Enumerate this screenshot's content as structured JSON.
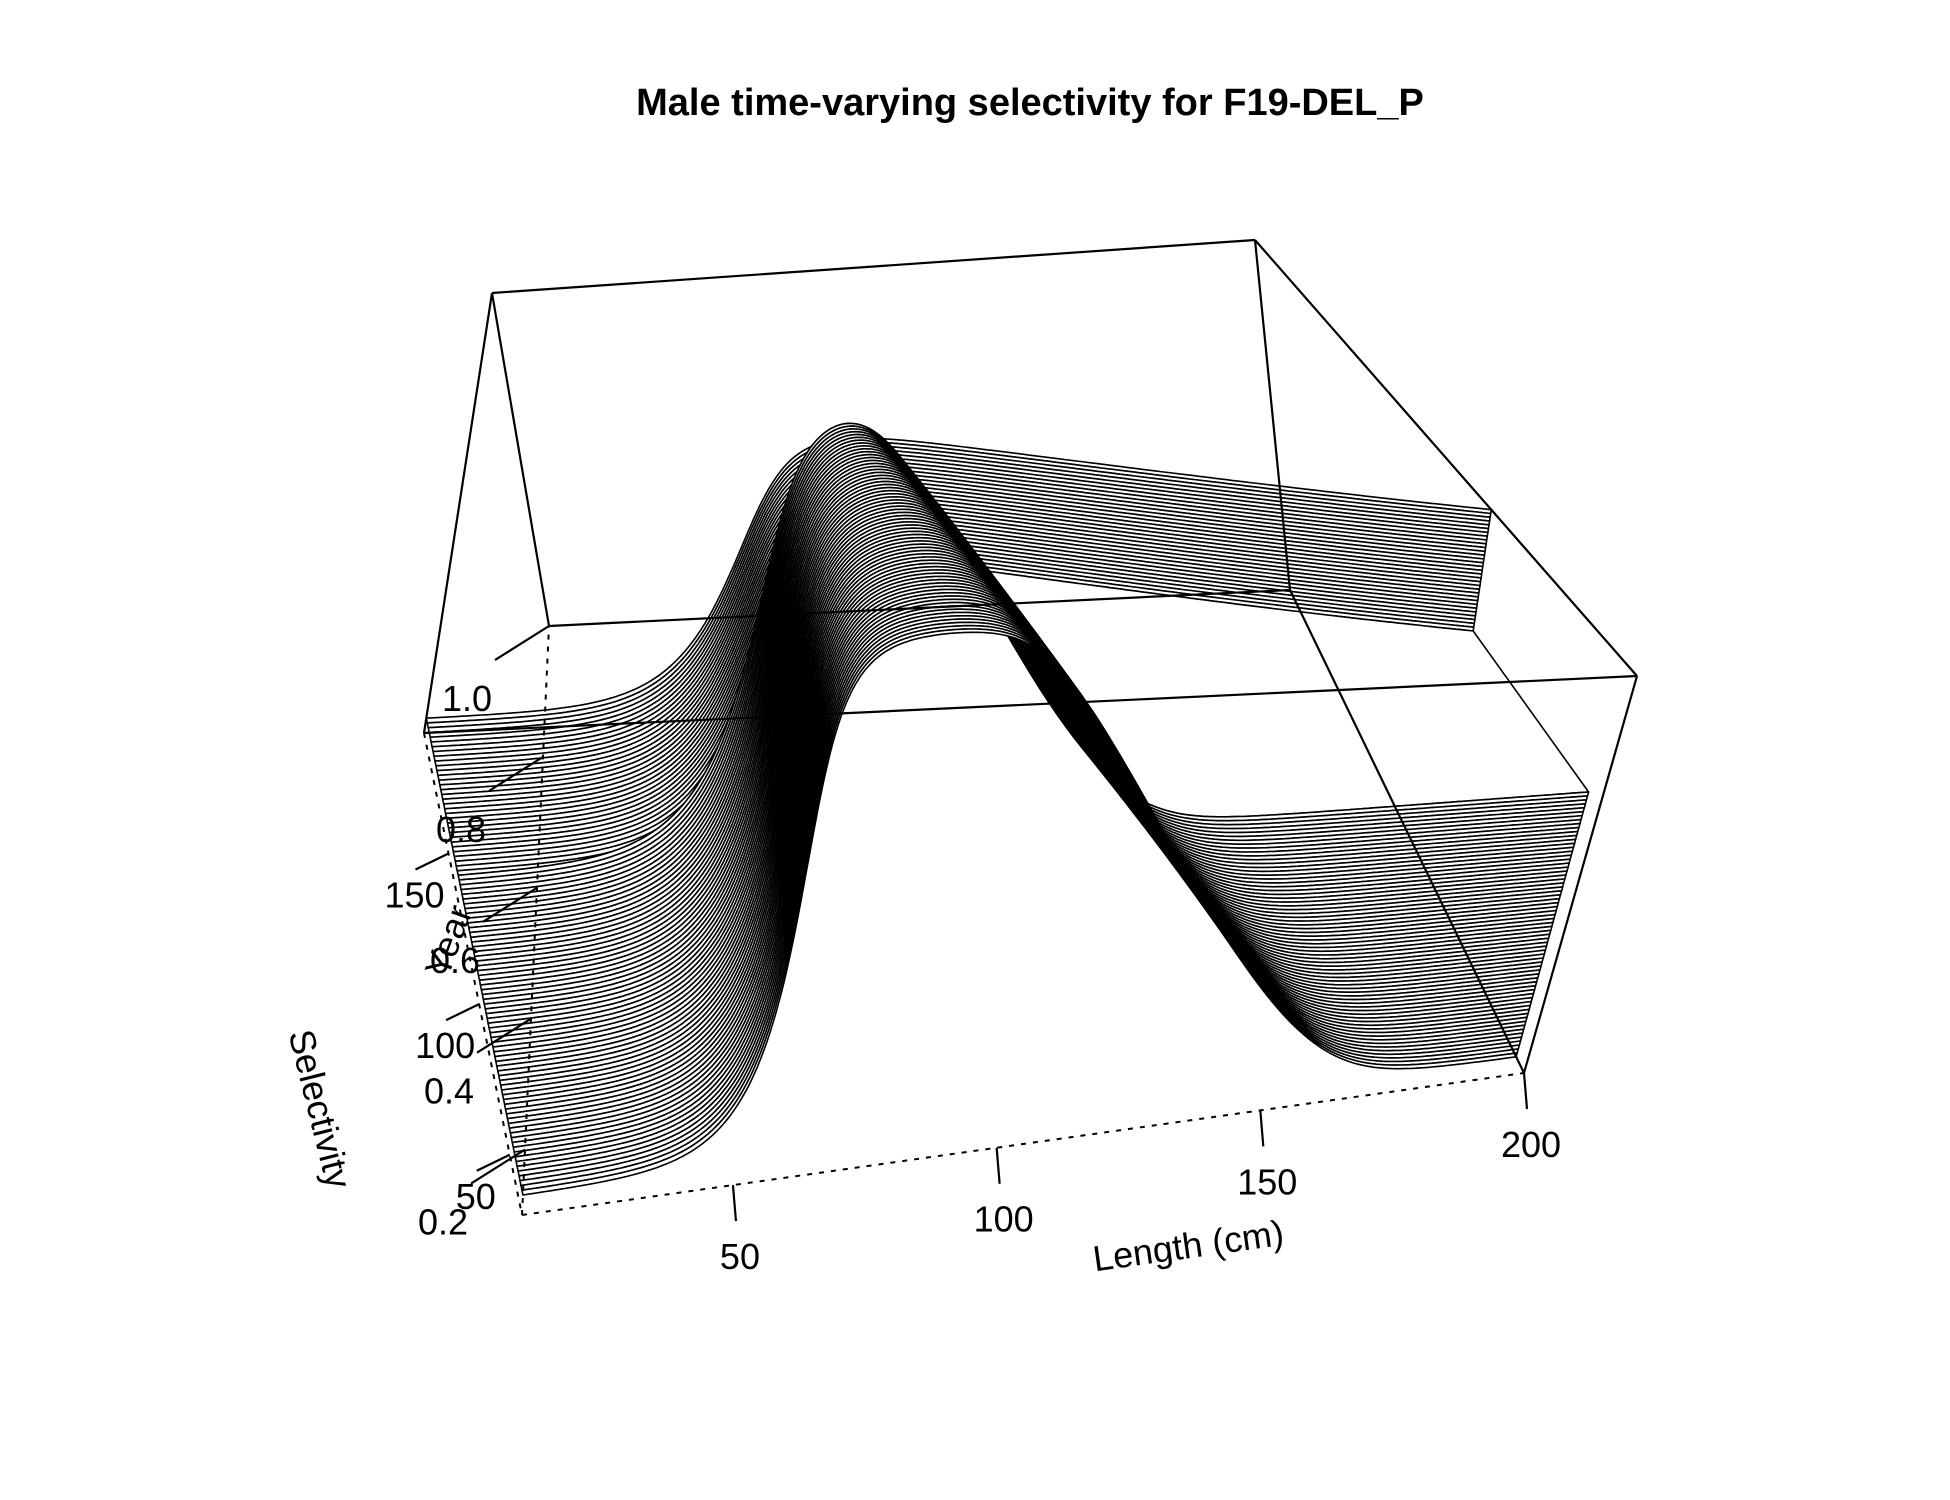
{
  "chart_data": {
    "type": "surface3d",
    "title": "Male time-varying selectivity for F19-DEL_P",
    "xlabel": "Length (cm)",
    "ylabel": "Year",
    "zlabel": "Selectivity",
    "xlim": [
      10,
      200
    ],
    "ylim": [
      30,
      190
    ],
    "zlim": [
      0.1,
      1.0
    ],
    "x_ticks": [
      50,
      100,
      150,
      200
    ],
    "y_ticks": [
      50,
      100,
      150
    ],
    "z_ticks": [
      0.2,
      0.4,
      0.6,
      0.8,
      1.0
    ],
    "z_tick_labels": [
      "0.2",
      "0.4",
      "0.6",
      "0.8",
      "1.0"
    ],
    "grid": false,
    "legend": "none",
    "series": [
      {
        "years": [
          30,
          138
        ],
        "ascending_inflection_length": [
          68,
          64
        ],
        "ascending_width": [
          8,
          8
        ],
        "descending_inflection_length": [
          150,
          112
        ],
        "descending_width": [
          6,
          5
        ],
        "min_selectivity": 0.13,
        "max_selectivity": 0.96
      },
      {
        "years": [
          138,
          190
        ],
        "ascending_inflection_length": [
          62,
          62
        ],
        "ascending_width": [
          7,
          7
        ],
        "descending_inflection_length": [
          150,
          150
        ],
        "descending_width": [
          100,
          100
        ],
        "min_selectivity": 0.13,
        "max_selectivity": 0.96
      }
    ]
  },
  "colors": {
    "lines": "#000000",
    "background": "#ffffff"
  }
}
